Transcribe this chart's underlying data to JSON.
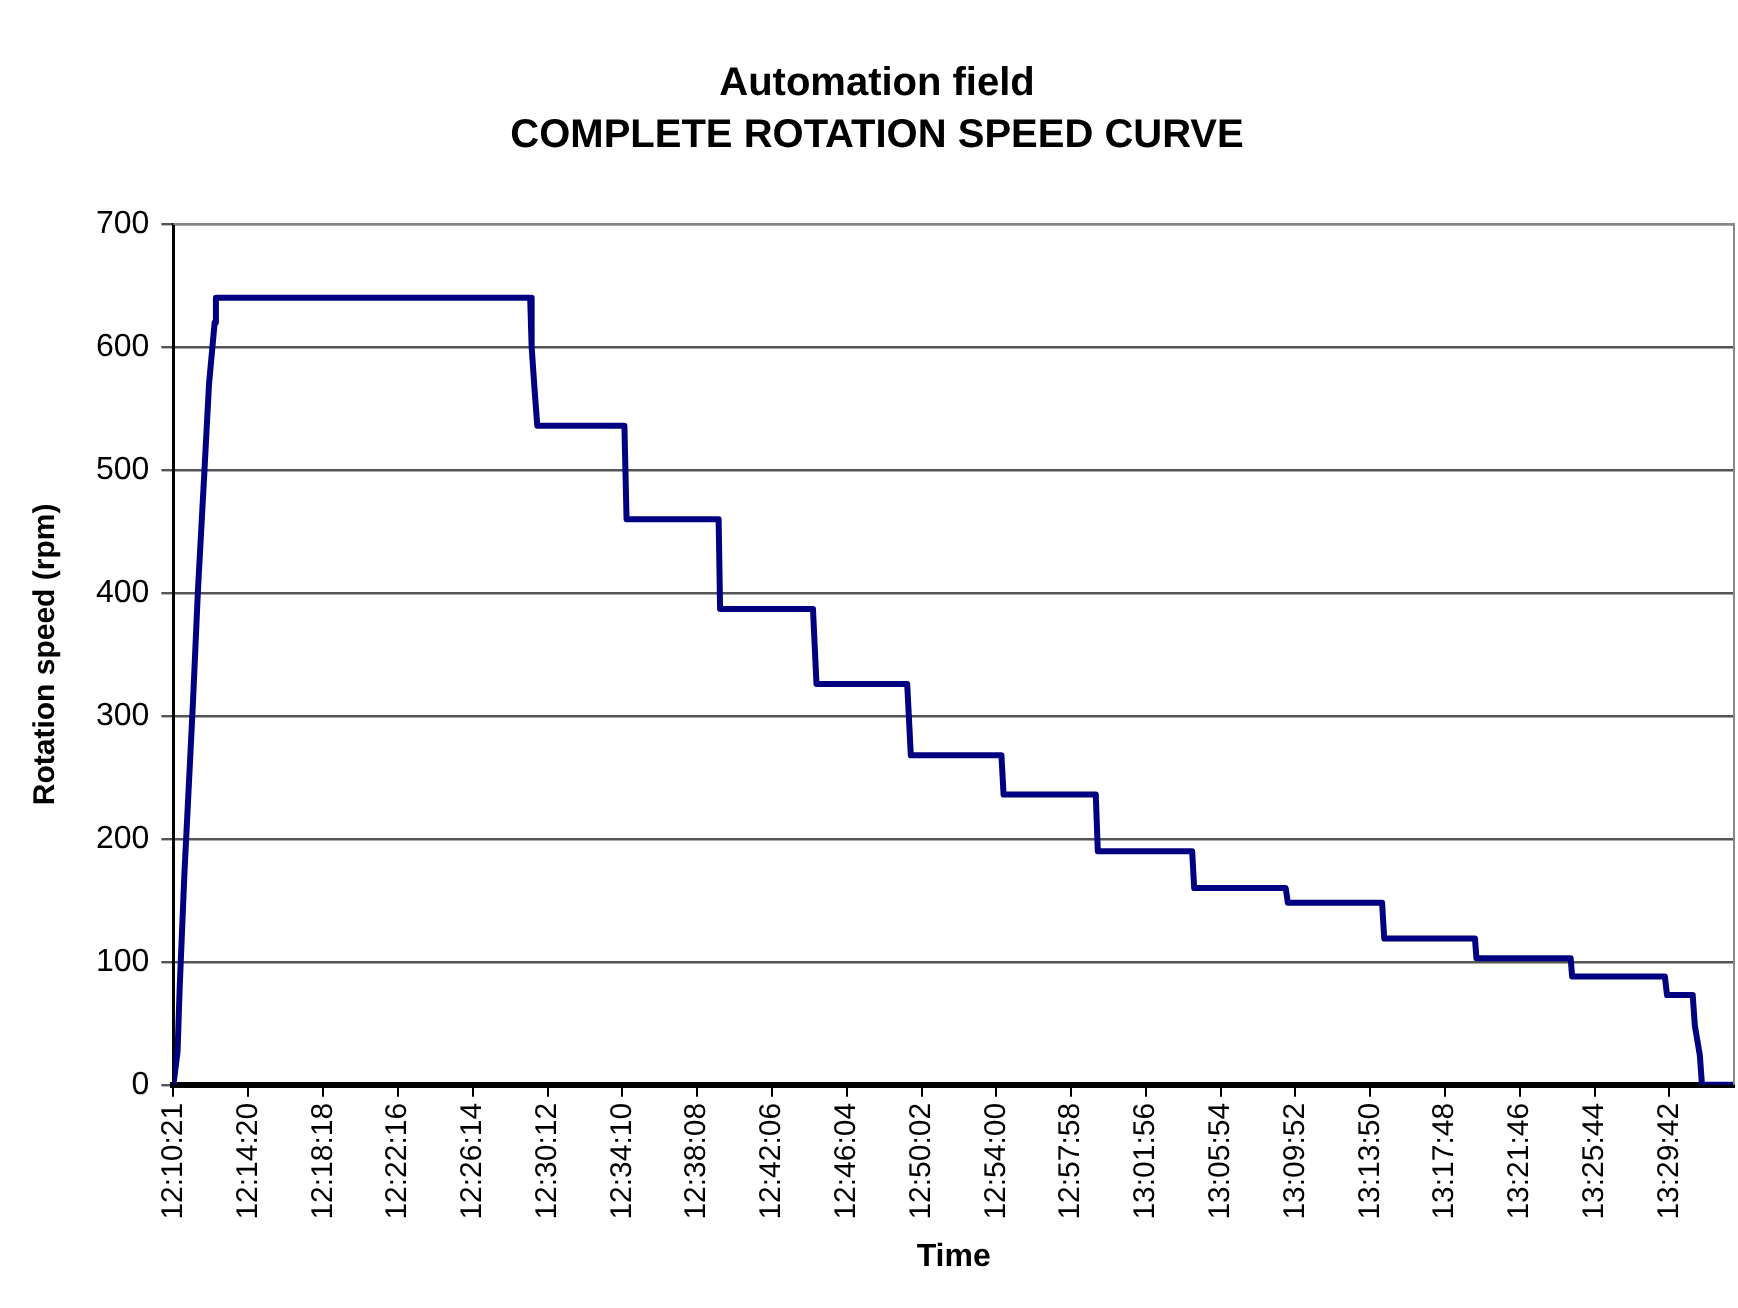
{
  "chart_data": {
    "type": "line",
    "title": "Automation field",
    "subtitle": "COMPLETE ROTATION SPEED CURVE",
    "xlabel": "Time",
    "ylabel": "Rotation speed (rpm)",
    "x": [
      12.1725,
      12.1762,
      12.1781,
      12.1823,
      12.1897,
      12.1942,
      12.1997,
      12.204,
      12.209,
      12.2101,
      12.4879,
      12.4892,
      12.4919,
      12.4942,
      12.5712,
      12.5731,
      12.6545,
      12.6558,
      12.7379,
      12.741,
      12.8212,
      12.8244,
      12.9045,
      12.9064,
      12.9879,
      12.9897,
      13.0731,
      13.0749,
      13.1558,
      13.1577,
      13.241,
      13.2429,
      13.3231,
      13.3244,
      13.4077,
      13.409,
      13.491,
      13.4929,
      13.5156,
      13.5175,
      13.5219,
      13.5238,
      13.5497
    ],
    "series": [
      {
        "color": "#000080",
        "values": [
          0,
          27,
          80,
          173,
          309,
          402,
          495,
          570,
          620,
          640,
          640,
          600,
          564,
          536,
          536,
          460,
          460,
          387,
          387,
          326,
          326,
          268,
          268,
          236,
          236,
          190,
          190,
          160,
          160,
          148,
          148,
          119,
          119,
          103,
          103,
          88,
          88,
          73,
          73,
          48,
          24,
          0,
          0
        ]
      }
    ],
    "xlim": [
      12.1725,
      13.5521
    ],
    "xticks": [
      {
        "value": 12.1725,
        "label": "12:10:21"
      },
      {
        "value": 12.23889,
        "label": "12:14:20"
      },
      {
        "value": 12.305,
        "label": "12:18:18"
      },
      {
        "value": 12.37111,
        "label": "12:22:16"
      },
      {
        "value": 12.43722,
        "label": "12:26:14"
      },
      {
        "value": 12.50333,
        "label": "12:30:12"
      },
      {
        "value": 12.56944,
        "label": "12:34:10"
      },
      {
        "value": 12.63556,
        "label": "12:38:08"
      },
      {
        "value": 12.70167,
        "label": "12:42:06"
      },
      {
        "value": 12.76778,
        "label": "12:46:04"
      },
      {
        "value": 12.83389,
        "label": "12:50:02"
      },
      {
        "value": 12.9,
        "label": "12:54:00"
      },
      {
        "value": 12.96611,
        "label": "12:57:58"
      },
      {
        "value": 13.03222,
        "label": "13:01:56"
      },
      {
        "value": 13.09833,
        "label": "13:05:54"
      },
      {
        "value": 13.16444,
        "label": "13:09:52"
      },
      {
        "value": 13.23056,
        "label": "13:13:50"
      },
      {
        "value": 13.29667,
        "label": "13:17:48"
      },
      {
        "value": 13.36278,
        "label": "13:21:46"
      },
      {
        "value": 13.42889,
        "label": "13:25:44"
      },
      {
        "value": 13.495,
        "label": "13:29:42"
      }
    ],
    "ylim": [
      0,
      700
    ],
    "yticks": [
      0,
      100,
      200,
      300,
      400,
      500,
      600,
      700
    ],
    "grid": "y",
    "legend": false,
    "marker": "none",
    "line_style": "solid"
  }
}
